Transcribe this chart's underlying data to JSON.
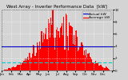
{
  "title": "West Array - Inverter Performance Data  [kW]",
  "bg_color": "#d4d4d4",
  "plot_bg_color": "#d4d4d4",
  "grid_color": "#ffffff",
  "bar_color": "#ff0000",
  "bar_edge_color": "#cc0000",
  "avg_line_color": "#0000cc",
  "avg_line2_color": "#00cccc",
  "avg_value": 0.4,
  "avg_value2": 0.13,
  "ylim": [
    0,
    1.0
  ],
  "ytick_vals": [
    0.0,
    0.2,
    0.4,
    0.6,
    0.8,
    1.0
  ],
  "ytick_labels": [
    "0",
    "2",
    "4",
    "6",
    "8",
    "10"
  ],
  "n_bars": 120,
  "legend_actual_color": "#0000cc",
  "legend_avg_color": "#ff0000",
  "legend_actual": "Actual kW",
  "legend_avg": "Average kW",
  "title_fontsize": 4.0,
  "legend_fontsize": 3.2,
  "tick_fontsize": 2.8,
  "xtick_labels": [
    "Jan",
    "Feb",
    "Mar",
    "Apr",
    "May",
    "Jun",
    "Jul",
    "Aug",
    "Sep",
    "Oct",
    "Nov",
    "Dec",
    ""
  ]
}
